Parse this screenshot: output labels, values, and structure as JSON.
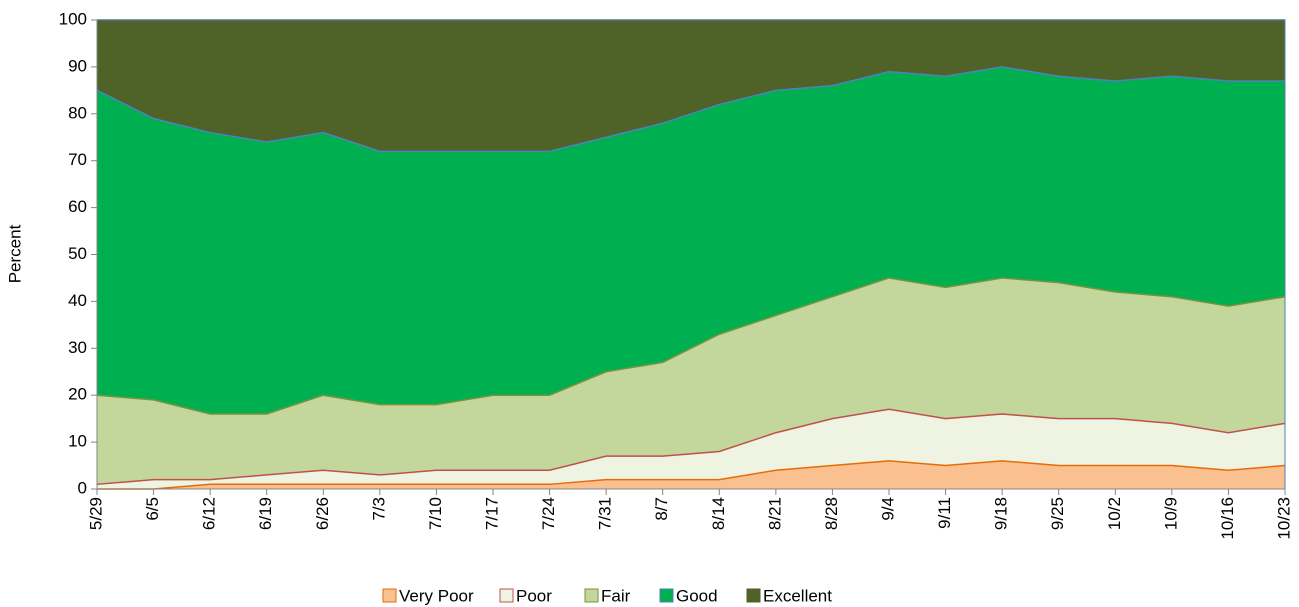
{
  "chart_data": {
    "type": "stacked_area",
    "y_label": "Percent",
    "categories": [
      "5/29",
      "6/5",
      "6/12",
      "6/19",
      "6/26",
      "7/3",
      "7/10",
      "7/17",
      "7/24",
      "7/31",
      "8/7",
      "8/14",
      "8/21",
      "8/28",
      "9/4",
      "9/11",
      "9/18",
      "9/25",
      "10/2",
      "10/9",
      "10/16",
      "10/23"
    ],
    "series": [
      {
        "name": "Very Poor",
        "color": "#fac090",
        "line_color": "#e46c0a",
        "values": [
          0,
          0,
          1,
          1,
          1,
          1,
          1,
          1,
          1,
          2,
          2,
          2,
          4,
          5,
          6,
          5,
          6,
          5,
          5,
          5,
          4,
          5
        ]
      },
      {
        "name": "Poor",
        "color": "#eef3e2",
        "line_color": "#c0504d",
        "values": [
          1,
          2,
          1,
          2,
          3,
          2,
          3,
          3,
          3,
          5,
          5,
          6,
          8,
          10,
          11,
          10,
          10,
          10,
          10,
          9,
          8,
          9
        ]
      },
      {
        "name": "Fair",
        "color": "#c3d69b",
        "line_color": "#77933c",
        "values": [
          19,
          17,
          14,
          13,
          16,
          15,
          14,
          16,
          16,
          18,
          20,
          25,
          25,
          26,
          28,
          28,
          29,
          29,
          27,
          27,
          27,
          27
        ]
      },
      {
        "name": "Good",
        "color": "#00b050",
        "line_color": "#4f81bd",
        "values": [
          65,
          60,
          60,
          58,
          56,
          54,
          54,
          52,
          52,
          50,
          51,
          49,
          48,
          45,
          44,
          45,
          45,
          44,
          45,
          47,
          48,
          46
        ]
      },
      {
        "name": "Excellent",
        "color": "#4f6228",
        "line_color": "#4f6228",
        "values": [
          15,
          21,
          24,
          26,
          24,
          28,
          28,
          28,
          28,
          25,
          22,
          18,
          15,
          14,
          11,
          12,
          10,
          12,
          13,
          12,
          13,
          13
        ]
      }
    ],
    "ylim": [
      0,
      100
    ],
    "yticks": [
      0,
      10,
      20,
      30,
      40,
      50,
      60,
      70,
      80,
      90,
      100
    ]
  }
}
